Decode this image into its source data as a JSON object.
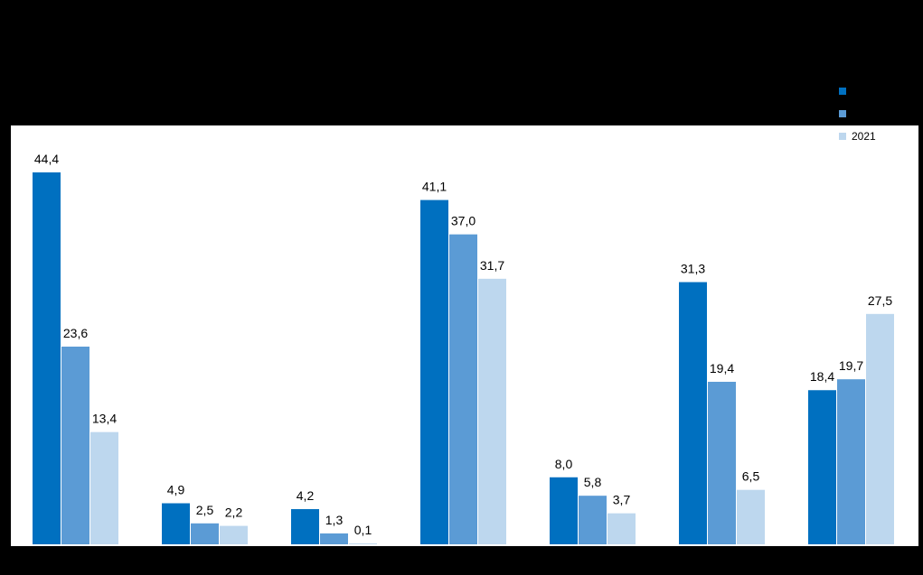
{
  "chart_data": {
    "type": "bar",
    "categories": [
      "",
      "",
      "",
      "",
      "",
      "",
      ""
    ],
    "series": [
      {
        "name": "",
        "color": "#0070c0",
        "values": [
          44.4,
          4.9,
          4.2,
          41.1,
          8.0,
          31.3,
          18.4
        ],
        "labels": [
          "44,4",
          "4,9",
          "4,2",
          "41,1",
          "8,0",
          "31,3",
          "18,4"
        ]
      },
      {
        "name": "",
        "color": "#5b9bd5",
        "values": [
          23.6,
          2.5,
          1.3,
          37.0,
          5.8,
          19.4,
          19.7
        ],
        "labels": [
          "23,6",
          "2,5",
          "1,3",
          "37,0",
          "5,8",
          "19,4",
          "19,7"
        ]
      },
      {
        "name": "2021",
        "color": "#bdd7ee",
        "values": [
          13.4,
          2.2,
          0.1,
          31.7,
          3.7,
          6.5,
          27.5
        ],
        "labels": [
          "13,4",
          "2,2",
          "0,1",
          "31,7",
          "3,7",
          "6,5",
          "27,5"
        ]
      }
    ],
    "ylim": [
      0,
      50
    ],
    "grid": false,
    "legend_position": "top-right",
    "title": "",
    "xlabel": "",
    "ylabel": ""
  }
}
